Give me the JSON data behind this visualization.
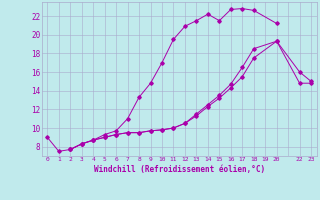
{
  "xlabel": "Windchill (Refroidissement éolien,°C)",
  "bg_color": "#c0eaec",
  "line_color": "#aa00aa",
  "grid_color": "#aaaacc",
  "xlim": [
    -0.5,
    23.5
  ],
  "ylim": [
    7.0,
    23.5
  ],
  "yticks": [
    8,
    10,
    12,
    14,
    16,
    18,
    20,
    22
  ],
  "xtick_labels": [
    "0",
    "1",
    "2",
    "3",
    "4",
    "5",
    "6",
    "7",
    "8",
    "9",
    "10",
    "11",
    "12",
    "13",
    "14",
    "15",
    "16",
    "17",
    "18",
    "19",
    "20",
    "",
    "22",
    "23"
  ],
  "curve1_x": [
    0,
    1,
    2,
    3,
    4,
    5,
    6,
    7,
    8,
    9,
    10,
    11,
    12,
    13,
    14,
    15,
    16,
    17,
    18,
    20
  ],
  "curve1_y": [
    9.0,
    7.5,
    7.7,
    8.3,
    8.7,
    9.3,
    9.7,
    11.0,
    13.3,
    14.8,
    17.0,
    19.5,
    20.9,
    21.5,
    22.2,
    21.5,
    22.7,
    22.8,
    22.6,
    21.2
  ],
  "curve2_x": [
    2,
    3,
    4,
    5,
    6,
    7,
    8,
    9,
    10,
    11,
    12,
    13,
    14,
    15,
    16,
    17,
    18,
    20,
    22,
    23
  ],
  "curve2_y": [
    7.7,
    8.3,
    8.7,
    9.0,
    9.3,
    9.5,
    9.5,
    9.7,
    9.8,
    10.0,
    10.5,
    11.5,
    12.5,
    13.5,
    14.7,
    16.5,
    18.5,
    19.3,
    16.0,
    15.0
  ],
  "curve3_x": [
    2,
    3,
    4,
    5,
    6,
    7,
    8,
    9,
    10,
    11,
    12,
    13,
    14,
    15,
    16,
    17,
    18,
    20,
    22,
    23
  ],
  "curve3_y": [
    7.7,
    8.3,
    8.7,
    9.0,
    9.3,
    9.5,
    9.5,
    9.7,
    9.8,
    10.0,
    10.5,
    11.3,
    12.3,
    13.2,
    14.3,
    15.5,
    17.5,
    19.3,
    14.8,
    14.8
  ]
}
